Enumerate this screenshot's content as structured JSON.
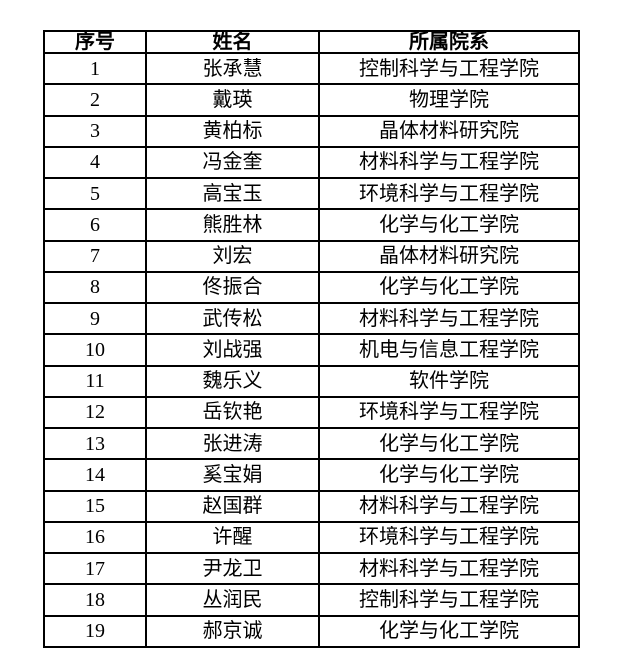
{
  "page": {
    "background_color": "#ffffff",
    "border_color": "#000000",
    "text_color": "#000000"
  },
  "table": {
    "headers": [
      "序号",
      "姓名",
      "所属院系"
    ],
    "rows": [
      [
        "1",
        "张承慧",
        "控制科学与工程学院"
      ],
      [
        "2",
        "戴瑛",
        "物理学院"
      ],
      [
        "3",
        "黄柏标",
        "晶体材料研究院"
      ],
      [
        "4",
        "冯金奎",
        "材料科学与工程学院"
      ],
      [
        "5",
        "高宝玉",
        "环境科学与工程学院"
      ],
      [
        "6",
        "熊胜林",
        "化学与化工学院"
      ],
      [
        "7",
        "刘宏",
        "晶体材料研究院"
      ],
      [
        "8",
        "佟振合",
        "化学与化工学院"
      ],
      [
        "9",
        "武传松",
        "材料科学与工程学院"
      ],
      [
        "10",
        "刘战强",
        "机电与信息工程学院"
      ],
      [
        "11",
        "魏乐义",
        "软件学院"
      ],
      [
        "12",
        "岳钦艳",
        "环境科学与工程学院"
      ],
      [
        "13",
        "张进涛",
        "化学与化工学院"
      ],
      [
        "14",
        "奚宝娟",
        "化学与化工学院"
      ],
      [
        "15",
        "赵国群",
        "材料科学与工程学院"
      ],
      [
        "16",
        "许醒",
        "环境科学与工程学院"
      ],
      [
        "17",
        "尹龙卫",
        "材料科学与工程学院"
      ],
      [
        "18",
        "丛润民",
        "控制科学与工程学院"
      ],
      [
        "19",
        "郝京诚",
        "化学与化工学院"
      ]
    ]
  }
}
